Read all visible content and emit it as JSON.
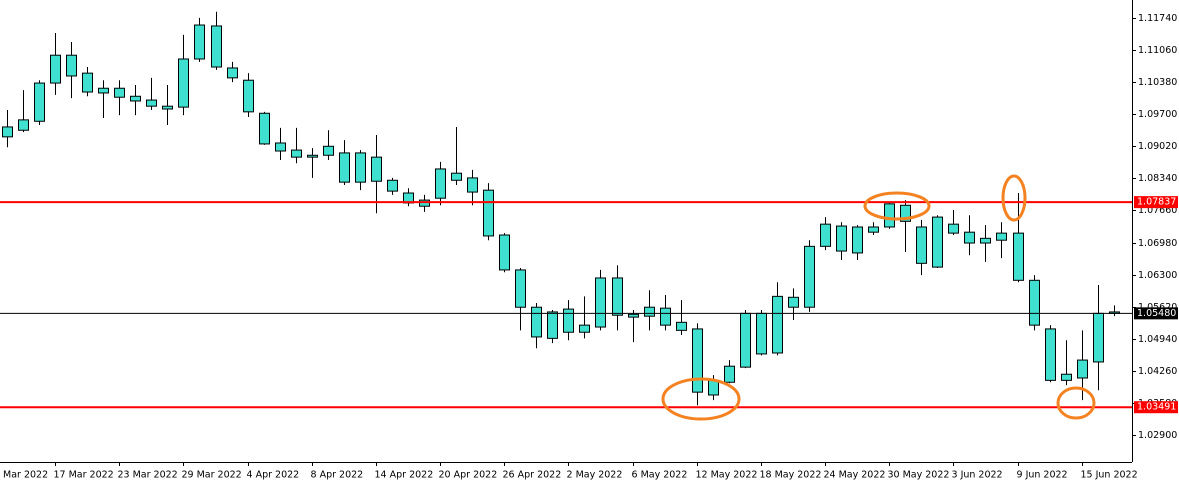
{
  "chart_data": {
    "type": "candlestick",
    "color": "#40e0d0",
    "outline": "#000000",
    "x_edge_label": "Mar 2022",
    "categories": [
      null,
      null,
      null,
      "17 Mar 2022",
      null,
      null,
      null,
      "23 Mar 2022",
      null,
      null,
      null,
      "29 Mar 2022",
      null,
      null,
      null,
      "4 Apr 2022",
      null,
      null,
      null,
      "8 Apr 2022",
      null,
      null,
      null,
      "14 Apr 2022",
      null,
      null,
      null,
      "20 Apr 2022",
      null,
      null,
      null,
      "26 Apr 2022",
      null,
      null,
      null,
      "2 May 2022",
      null,
      null,
      null,
      "6 May 2022",
      null,
      null,
      null,
      "12 May 2022",
      null,
      null,
      null,
      "18 May 2022",
      null,
      null,
      null,
      "24 May 2022",
      null,
      null,
      null,
      "30 May 2022",
      null,
      null,
      null,
      "3 Jun 2022",
      null,
      null,
      null,
      "9 Jun 2022",
      null,
      null,
      null,
      "15 Jun 2022",
      null,
      null
    ],
    "open": [
      1.0922,
      1.0936,
      1.0955,
      1.1036,
      1.1095,
      1.1057,
      1.1025,
      1.1025,
      1.1008,
      1.1,
      1.0981,
      1.0985,
      1.1087,
      1.1157,
      1.1068,
      1.1042,
      1.0972,
      1.0909,
      1.0894,
      1.0879,
      1.0883,
      1.0888,
      1.0826,
      1.0879,
      1.083,
      1.0803,
      1.0775,
      1.0792,
      1.0845,
      1.0835,
      1.0809,
      1.0714,
      1.064,
      1.0561,
      1.0495,
      1.0508,
      1.0523,
      1.0519,
      1.0623,
      1.0546,
      1.0542,
      1.0559,
      1.0529,
      1.0515,
      1.0375,
      1.0402,
      1.0434,
      1.0548,
      1.0464,
      1.0561,
      1.0561,
      1.069,
      1.0733,
      1.0676,
      1.072,
      1.0731,
      1.0777,
      1.0731,
      1.0646,
      1.0737,
      1.072,
      1.0697,
      1.0703,
      1.0718,
      1.0618,
      1.0515,
      1.0406,
      1.0411,
      1.0445,
      1.0551
    ],
    "high": [
      1.0979,
      1.1021,
      1.1042,
      1.1142,
      1.1123,
      1.107,
      1.1042,
      1.1042,
      1.1032,
      1.1047,
      1.1032,
      1.1138,
      1.1174,
      1.1187,
      1.1081,
      1.1057,
      1.0975,
      1.0941,
      1.0941,
      1.0898,
      1.0936,
      1.0915,
      1.0894,
      1.0926,
      1.0835,
      1.0813,
      1.0799,
      1.0869,
      1.0943,
      1.0852,
      1.0824,
      1.0718,
      1.0644,
      1.057,
      1.0555,
      1.0576,
      1.0584,
      1.064,
      1.065,
      1.0555,
      1.0597,
      1.0587,
      1.0576,
      1.0527,
      1.0417,
      1.0449,
      1.0555,
      1.0555,
      1.0614,
      1.0601,
      1.0703,
      1.0752,
      1.0741,
      1.0735,
      1.0741,
      1.0784,
      1.0788,
      1.0746,
      1.0756,
      1.0767,
      1.0756,
      1.0735,
      1.0741,
      1.0803,
      1.0629,
      1.0523,
      1.0491,
      1.0512,
      1.0608,
      1.0565
    ],
    "low": [
      1.09,
      1.0932,
      1.0947,
      1.1011,
      1.1004,
      1.1008,
      1.0962,
      1.0968,
      1.0968,
      1.0979,
      1.0947,
      1.0968,
      1.1081,
      1.1064,
      1.1038,
      1.0964,
      1.0905,
      1.0873,
      1.0866,
      1.0835,
      1.0873,
      1.082,
      1.0809,
      1.076,
      1.0799,
      1.0775,
      1.0763,
      1.0777,
      1.082,
      1.0777,
      1.0703,
      1.0635,
      1.0512,
      1.0474,
      1.0485,
      1.0491,
      1.0495,
      1.0512,
      1.0512,
      1.0487,
      1.0512,
      1.0512,
      1.0502,
      1.0353,
      1.0364,
      1.04,
      1.0432,
      1.0459,
      1.0459,
      1.0534,
      1.0551,
      1.0682,
      1.0661,
      1.0661,
      1.0714,
      1.0727,
      1.0678,
      1.0629,
      1.0644,
      1.0714,
      1.0671,
      1.0657,
      1.0665,
      1.0614,
      1.0512,
      1.0402,
      1.0396,
      1.0364,
      1.0385,
      1.0542
    ],
    "close": [
      1.0943,
      1.0958,
      1.1036,
      1.1095,
      1.1051,
      1.1017,
      1.1015,
      1.1006,
      1.0998,
      1.0987,
      1.0987,
      1.1087,
      1.1159,
      1.107,
      1.1047,
      1.0975,
      1.0907,
      1.0892,
      1.0879,
      1.0883,
      1.0902,
      1.0826,
      1.0888,
      1.0828,
      1.0807,
      1.0782,
      1.0788,
      1.0854,
      1.083,
      1.0805,
      1.0712,
      1.064,
      1.0561,
      1.0498,
      1.0551,
      1.0557,
      1.0508,
      1.0623,
      1.0544,
      1.054,
      1.0561,
      1.0523,
      1.0512,
      1.0381,
      1.0406,
      1.0436,
      1.0548,
      1.0462,
      1.0584,
      1.0582,
      1.069,
      1.0737,
      1.068,
      1.0731,
      1.0731,
      1.078,
      1.0743,
      1.0654,
      1.0752,
      1.0718,
      1.0697,
      1.0707,
      1.0718,
      1.0618,
      1.0523,
      1.0406,
      1.0419,
      1.0449,
      1.0548,
      1.0548
    ],
    "ylim": [
      1.0233,
      1.1212
    ],
    "yticks": [
      {
        "value": 1.029,
        "label": "1.02900"
      },
      {
        "value": 1.0358,
        "label": "1.03580"
      },
      {
        "value": 1.0426,
        "label": "1.04260"
      },
      {
        "value": 1.0494,
        "label": "1.04940"
      },
      {
        "value": 1.0562,
        "label": "1.05620"
      },
      {
        "value": 1.063,
        "label": "1.06300"
      },
      {
        "value": 1.0698,
        "label": "1.06980"
      },
      {
        "value": 1.0766,
        "label": "1.07660"
      },
      {
        "value": 1.0834,
        "label": "1.08340"
      },
      {
        "value": 1.0902,
        "label": "1.09020"
      },
      {
        "value": 1.097,
        "label": "1.09700"
      },
      {
        "value": 1.1038,
        "label": "1.10380"
      },
      {
        "value": 1.1106,
        "label": "1.11060"
      },
      {
        "value": 1.1174,
        "label": "1.11740"
      }
    ],
    "levels": [
      {
        "price": 1.07837,
        "color": "#ff0000"
      },
      {
        "price": 1.03491,
        "color": "#ff0000"
      },
      {
        "price": {
          "value": 1.0548,
          "label": "1.05480"
        },
        "color": "#000000"
      }
    ]
  }
}
